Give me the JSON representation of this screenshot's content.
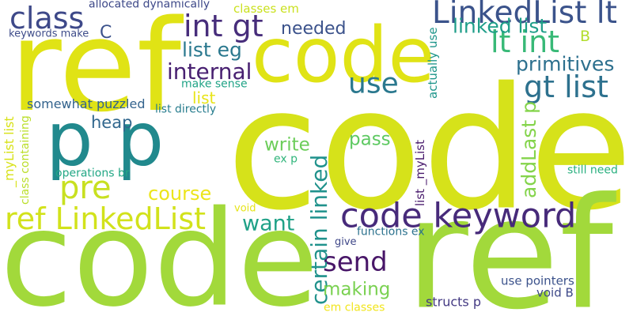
{
  "words": [
    {
      "text": "code",
      "color": "#d6e21a"
    },
    {
      "text": "code",
      "color": "#a2d93b"
    },
    {
      "text": "ref",
      "color": "#a2d93b"
    },
    {
      "text": "ref",
      "color": "#e0e315"
    },
    {
      "text": "code",
      "color": "#e0e315"
    },
    {
      "text": "p p",
      "color": "#21898d"
    },
    {
      "text": "code keyword",
      "color": "#472a7a"
    },
    {
      "text": "LinkedList lt",
      "color": "#3b538b"
    },
    {
      "text": "class",
      "color": "#3e4989"
    },
    {
      "text": "use",
      "color": "#2a788e"
    },
    {
      "text": "ref LinkedList",
      "color": "#d2e21b"
    },
    {
      "text": "want",
      "color": "#1fa187"
    },
    {
      "text": "send",
      "color": "#481668"
    },
    {
      "text": "pre",
      "color": "#c8e020"
    },
    {
      "text": "int gt",
      "color": "#472d7b"
    },
    {
      "text": "gt list",
      "color": "#2d718e"
    },
    {
      "text": "lt int",
      "color": "#38b977"
    },
    {
      "text": "C",
      "color": "#3b528b"
    },
    {
      "text": "linked list",
      "color": "#1f9e89"
    },
    {
      "text": "primitives",
      "color": "#2d708e"
    },
    {
      "text": "internal",
      "color": "#482071"
    },
    {
      "text": "needed",
      "color": "#3b528b"
    },
    {
      "text": "list eg",
      "color": "#2a788e"
    },
    {
      "text": "certain linked",
      "color": "#20928c"
    },
    {
      "text": "heap",
      "color": "#31678e"
    },
    {
      "text": "write",
      "color": "#6ccd5a"
    },
    {
      "text": "pass",
      "color": "#5ec962"
    },
    {
      "text": "making",
      "color": "#7ad151"
    },
    {
      "text": "course",
      "color": "#ece51b"
    },
    {
      "text": "addLast p",
      "color": "#84d44b"
    },
    {
      "text": "give",
      "color": "#3f4788"
    },
    {
      "text": "void",
      "color": "#e5e419"
    },
    {
      "text": "list",
      "color": "#e8e419"
    },
    {
      "text": "B",
      "color": "#b2dd2d"
    },
    {
      "text": "somewhat puzzled",
      "color": "#33638d"
    },
    {
      "text": "allocated dynamically",
      "color": "#3e4989"
    },
    {
      "text": "classes em",
      "color": "#cae11f"
    },
    {
      "text": "keywords make",
      "color": "#3e4c8a"
    },
    {
      "text": "make sense",
      "color": "#20a386"
    },
    {
      "text": "list directly",
      "color": "#287d8e"
    },
    {
      "text": "actually use",
      "color": "#1f968b"
    },
    {
      "text": "_myList list",
      "color": "#d8e219"
    },
    {
      "text": "class containing",
      "color": "#bade28"
    },
    {
      "text": "operations br",
      "color": "#22a785"
    },
    {
      "text": "ex p",
      "color": "#31b57b"
    },
    {
      "text": "list _myList",
      "color": "#481a6c"
    },
    {
      "text": "still need",
      "color": "#2ab07f"
    },
    {
      "text": "functions ex",
      "color": "#2c728e"
    },
    {
      "text": "use pointers",
      "color": "#3b528b"
    },
    {
      "text": "void B",
      "color": "#3e4989"
    },
    {
      "text": "structs p",
      "color": "#443a83"
    },
    {
      "text": "em classes",
      "color": "#f1e51d"
    }
  ]
}
